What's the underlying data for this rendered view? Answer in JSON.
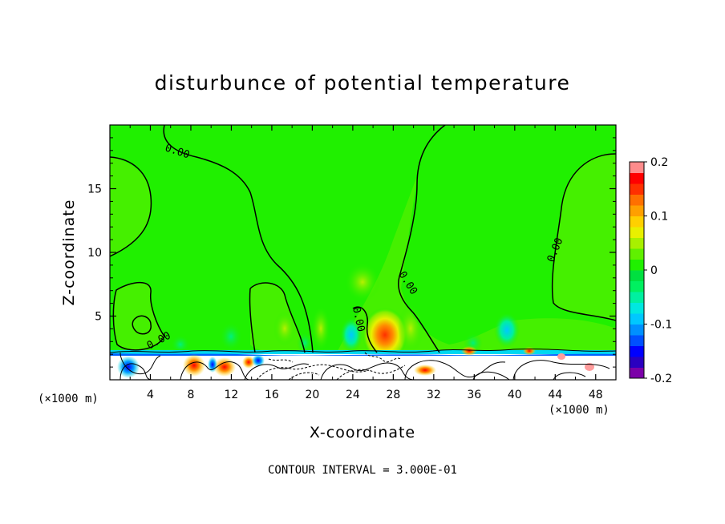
{
  "chart_data": {
    "type": "heatmap",
    "title": "disturbunce of potential temperature",
    "xlabel": "X-coordinate",
    "ylabel": "Z-coordinate",
    "x_unit": "(×1000 m)",
    "y_unit": "(×1000 m)",
    "xlim": [
      0,
      50
    ],
    "ylim": [
      0,
      20
    ],
    "x_ticks": [
      4,
      8,
      12,
      16,
      20,
      24,
      28,
      32,
      36,
      40,
      44,
      48
    ],
    "y_ticks": [
      5,
      10,
      15
    ],
    "colorbar": {
      "min": -0.2,
      "max": 0.2,
      "tick_values": [
        0.2,
        0.1,
        0,
        -0.1,
        -0.2
      ],
      "tick_labels": [
        "0.2",
        "0.1",
        "0",
        "-0.1",
        "-0.2"
      ],
      "colors": [
        "#7b00a8",
        "#2a00c0",
        "#0000ff",
        "#0050ff",
        "#0090ff",
        "#00c8ff",
        "#00e8e0",
        "#00f0a0",
        "#00f060",
        "#00e040",
        "#20f000",
        "#60f000",
        "#a8f000",
        "#e8f000",
        "#ffd000",
        "#ffa000",
        "#ff7000",
        "#ff3000",
        "#ff0000",
        "#ff8c8c"
      ]
    },
    "contour_interval_text": "CONTOUR INTERVAL = 3.000E-01",
    "contour_labels": [
      "0.00",
      "0.00",
      "0.00",
      "0.00",
      "0.00"
    ],
    "features": [
      {
        "name": "warm-core",
        "x": 27.5,
        "z": 3.5,
        "value": 0.15
      },
      {
        "name": "warm-patch",
        "x": 25.5,
        "z": 7.5,
        "value": 0.04
      },
      {
        "name": "cool-patch-a",
        "x": 24,
        "z": 4,
        "value": -0.04
      },
      {
        "name": "cool-patch-b",
        "x": 39,
        "z": 4,
        "value": -0.04
      },
      {
        "name": "cool-patch-c",
        "x": 12,
        "z": 3.5,
        "value": -0.03
      },
      {
        "name": "surface-layer",
        "x_range": [
          0,
          50
        ],
        "z_range": [
          0,
          2
        ],
        "value_range": [
          -0.2,
          0.2
        ]
      }
    ]
  }
}
